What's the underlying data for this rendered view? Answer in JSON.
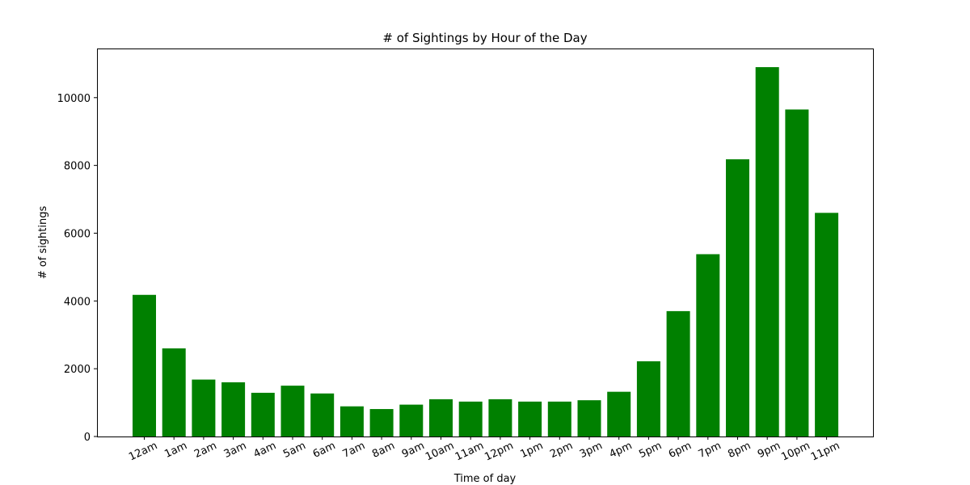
{
  "chart_data": {
    "type": "bar",
    "title": "# of Sightings by Hour of the Day",
    "xlabel": "Time of day",
    "ylabel": "# of sightings",
    "categories": [
      "12am",
      "1am",
      "2am",
      "3am",
      "4am",
      "5am",
      "6am",
      "7am",
      "8am",
      "9am",
      "10am",
      "11am",
      "12pm",
      "1pm",
      "2pm",
      "3pm",
      "4pm",
      "5pm",
      "6pm",
      "7pm",
      "8pm",
      "9pm",
      "10pm",
      "11pm"
    ],
    "values": [
      4180,
      2600,
      1680,
      1600,
      1290,
      1500,
      1270,
      890,
      810,
      940,
      1100,
      1030,
      1100,
      1030,
      1030,
      1070,
      1320,
      2220,
      3700,
      5380,
      8180,
      10900,
      9650,
      6600
    ],
    "yticks": [
      0,
      2000,
      4000,
      6000,
      8000,
      10000
    ],
    "ylim": [
      0,
      11450
    ],
    "bar_color": "#008000",
    "grid": false,
    "legend": "none"
  }
}
